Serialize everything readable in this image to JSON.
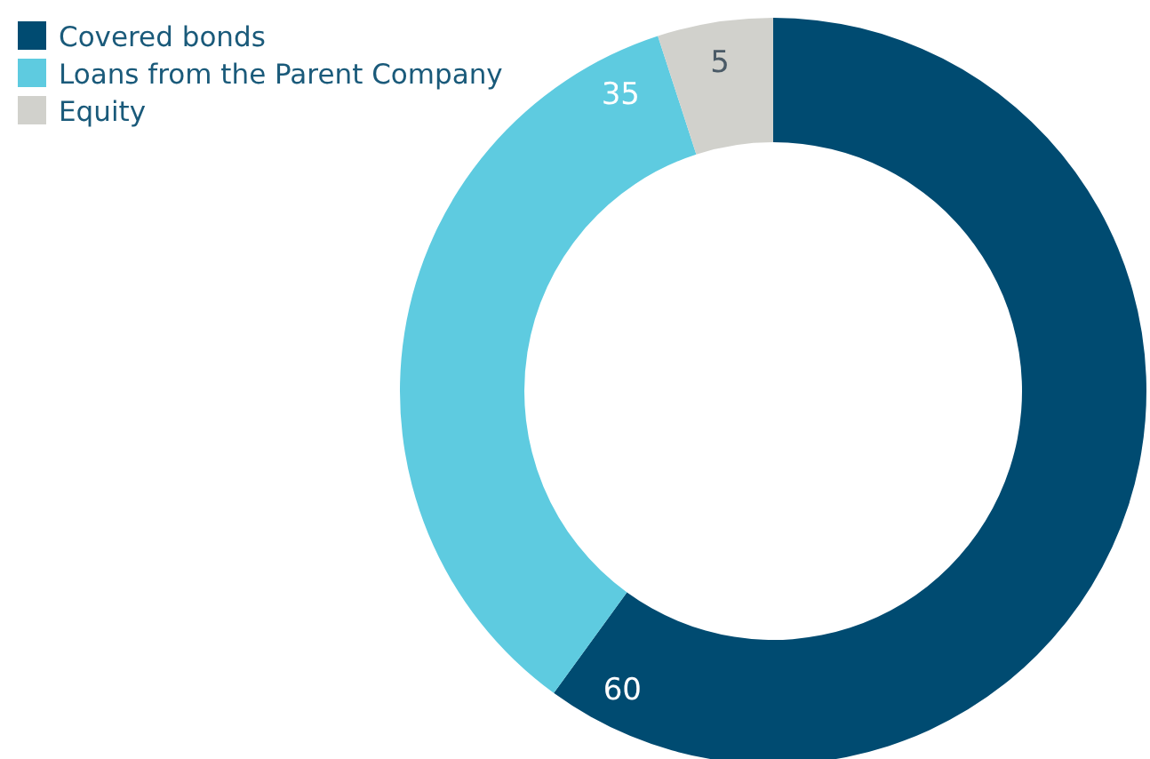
{
  "chart_data": {
    "type": "donut",
    "categories": [
      "Covered bonds",
      "Loans from the Parent Company",
      "Equity"
    ],
    "values": [
      60,
      35,
      5
    ],
    "colors": [
      "#004b71",
      "#5ecbe0",
      "#d1d1cc"
    ],
    "data_labels": true,
    "legend": "top left"
  }
}
